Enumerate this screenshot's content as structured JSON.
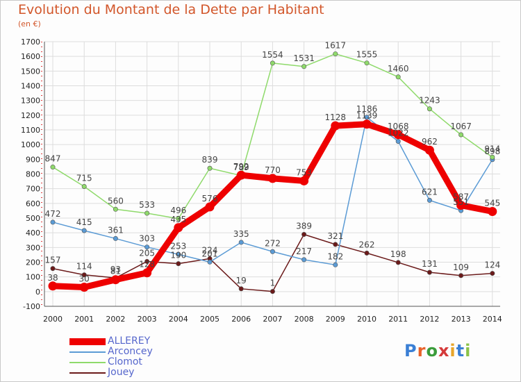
{
  "colors": {
    "title": "#d2562a",
    "grid": "#dddddd",
    "legend_text": "#5566cc",
    "label": "#444444"
  },
  "logo": {
    "letters": [
      "P",
      "r",
      "o",
      "x",
      "i",
      "t",
      "i"
    ],
    "colors": [
      "#3a7fd5",
      "#e8622a",
      "#3a9c3a",
      "#d53a3a",
      "#e8a52a",
      "#3a7fd5",
      "#8bc34a"
    ]
  },
  "chart_data": {
    "type": "line",
    "title": "Evolution du Montant de la Dette par Habitant",
    "ylabel": "(en €)",
    "xlabel": "",
    "ylim": [
      -100,
      1700
    ],
    "yticks": [
      -100,
      0,
      100,
      200,
      300,
      400,
      500,
      600,
      700,
      800,
      900,
      1000,
      1100,
      1200,
      1300,
      1400,
      1500,
      1600,
      1700
    ],
    "x": [
      "2000",
      "2001",
      "2002",
      "2003",
      "2004",
      "2005",
      "2006",
      "2007",
      "2008",
      "2009",
      "2010",
      "2011",
      "2012",
      "2013",
      "2014"
    ],
    "grid": true,
    "legend_position": "bottom-left",
    "series": [
      {
        "name": "Jouey",
        "color": "#6b1a1a",
        "values": [
          157,
          114,
          93,
          205,
          190,
          224,
          19,
          1,
          389,
          321,
          262,
          198,
          131,
          109,
          124
        ]
      },
      {
        "name": "Arconcey",
        "color": "#5b9bd5",
        "values": [
          472,
          415,
          361,
          303,
          253,
          201,
          335,
          272,
          217,
          182,
          1186,
          1022,
          621,
          551,
          898
        ]
      },
      {
        "name": "Clomot",
        "color": "#8fda6b",
        "values": [
          847,
          715,
          560,
          533,
          496,
          839,
          789,
          1554,
          1531,
          1617,
          1555,
          1460,
          1243,
          1067,
          914
        ]
      },
      {
        "name": "ALLEREY",
        "color": "#ee0000",
        "values": [
          38,
          30,
          81,
          128,
          435,
          576,
          792,
          770,
          753,
          1128,
          1139,
          1068,
          962,
          587,
          545
        ]
      }
    ]
  }
}
